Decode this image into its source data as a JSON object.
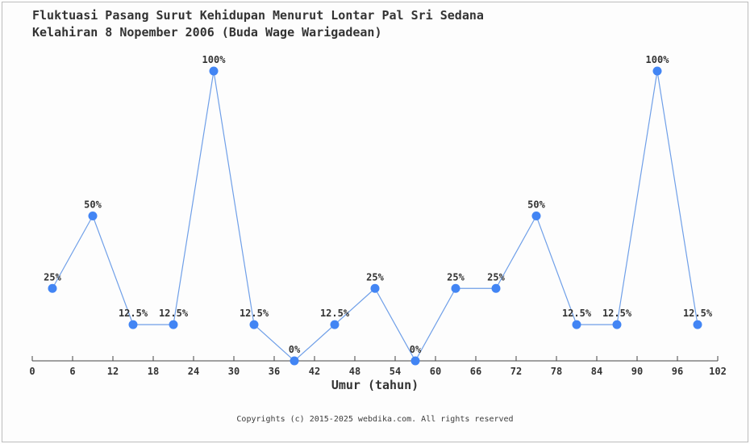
{
  "title_line1": "Fluktuasi Pasang Surut Kehidupan Menurut Lontar Pal Sri Sedana",
  "title_line2": "Kelahiran 8 Nopember 2006 (Buda Wage Warigadean)",
  "footer": "Copyrights (c) 2015-2025 webdika.com. All rights reserved",
  "chart_data": {
    "type": "line",
    "title": "Fluktuasi Pasang Surut Kehidupan Menurut Lontar Pal Sri Sedana Kelahiran 8 Nopember 2006 (Buda Wage Warigadean)",
    "xlabel": "Umur (tahun)",
    "ylabel": "",
    "x": [
      3,
      9,
      15,
      21,
      27,
      33,
      39,
      45,
      51,
      57,
      63,
      69,
      75,
      81,
      87,
      93,
      99
    ],
    "values": [
      25,
      50,
      12.5,
      12.5,
      100,
      12.5,
      0,
      12.5,
      25,
      0,
      25,
      25,
      50,
      12.5,
      12.5,
      100,
      12.5
    ],
    "point_labels": [
      "25%",
      "50%",
      "12.5%",
      "12.5%",
      "100%",
      "12.5%",
      "0%",
      "12.5%",
      "25%",
      "0%",
      "25%",
      "25%",
      "50%",
      "12.5%",
      "12.5%",
      "100%",
      "12.5%"
    ],
    "x_ticks": [
      0,
      6,
      12,
      18,
      24,
      30,
      36,
      42,
      48,
      54,
      60,
      66,
      72,
      78,
      84,
      90,
      96,
      102
    ],
    "xlim": [
      0,
      102
    ],
    "ylim": [
      0,
      100
    ],
    "grid": false,
    "legend": "none",
    "line_color": "#6f9fe8",
    "marker_color": "#4285f4",
    "axis_color": "#444444",
    "label_color": "#333333"
  }
}
